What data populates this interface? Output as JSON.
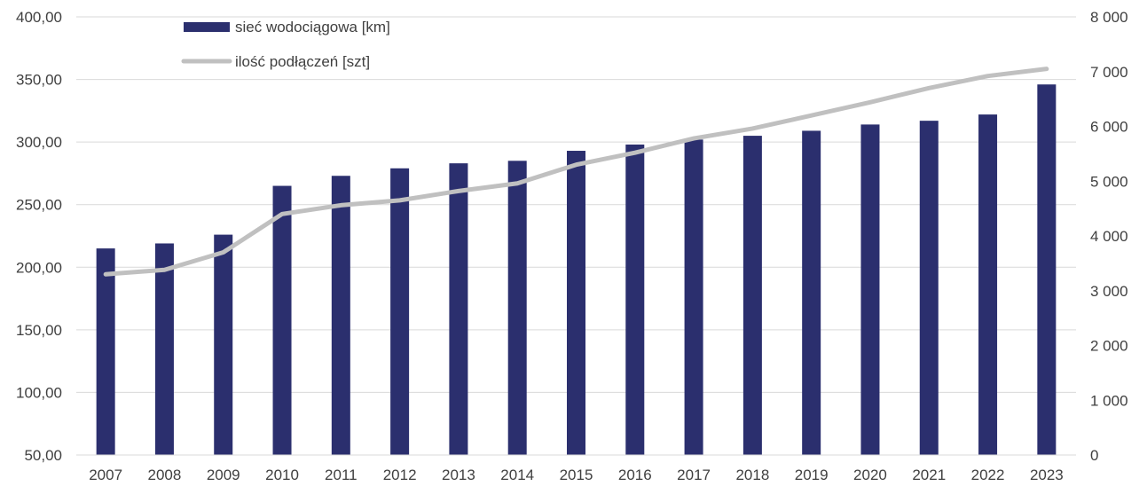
{
  "chart_data": {
    "type": "bar",
    "categories": [
      "2007",
      "2008",
      "2009",
      "2010",
      "2011",
      "2012",
      "2013",
      "2014",
      "2015",
      "2016",
      "2017",
      "2018",
      "2019",
      "2020",
      "2021",
      "2022",
      "2023"
    ],
    "series": [
      {
        "name": "sieć wodociągowa [km]",
        "type": "bar",
        "axis": "left",
        "color": "#2B2F6E",
        "values": [
          215,
          219,
          226,
          265,
          273,
          279,
          283,
          285,
          293,
          298,
          302,
          305,
          309,
          314,
          317,
          322,
          346
        ]
      },
      {
        "name": "ilość podłączeń [szt]",
        "type": "line",
        "axis": "right",
        "color": "#C0C0C0",
        "values": [
          3300,
          3380,
          3700,
          4400,
          4560,
          4650,
          4820,
          4960,
          5300,
          5520,
          5780,
          5960,
          6200,
          6440,
          6700,
          6920,
          7050
        ]
      }
    ],
    "y_left": {
      "ylim": [
        50,
        400
      ],
      "ticks": [
        50,
        100,
        150,
        200,
        250,
        300,
        350,
        400
      ],
      "tick_labels": [
        "50,00",
        "100,00",
        "150,00",
        "200,00",
        "250,00",
        "300,00",
        "350,00",
        "400,00"
      ]
    },
    "y_right": {
      "ylim": [
        0,
        8000
      ],
      "ticks": [
        0,
        1000,
        2000,
        3000,
        4000,
        5000,
        6000,
        7000,
        8000
      ],
      "tick_labels": [
        "0",
        "1 000",
        "2 000",
        "3 000",
        "4 000",
        "5 000",
        "6 000",
        "7 000",
        "8 000"
      ]
    },
    "grid": true,
    "legend_position": "top-left",
    "title": "",
    "xlabel": "",
    "ylabel": ""
  }
}
